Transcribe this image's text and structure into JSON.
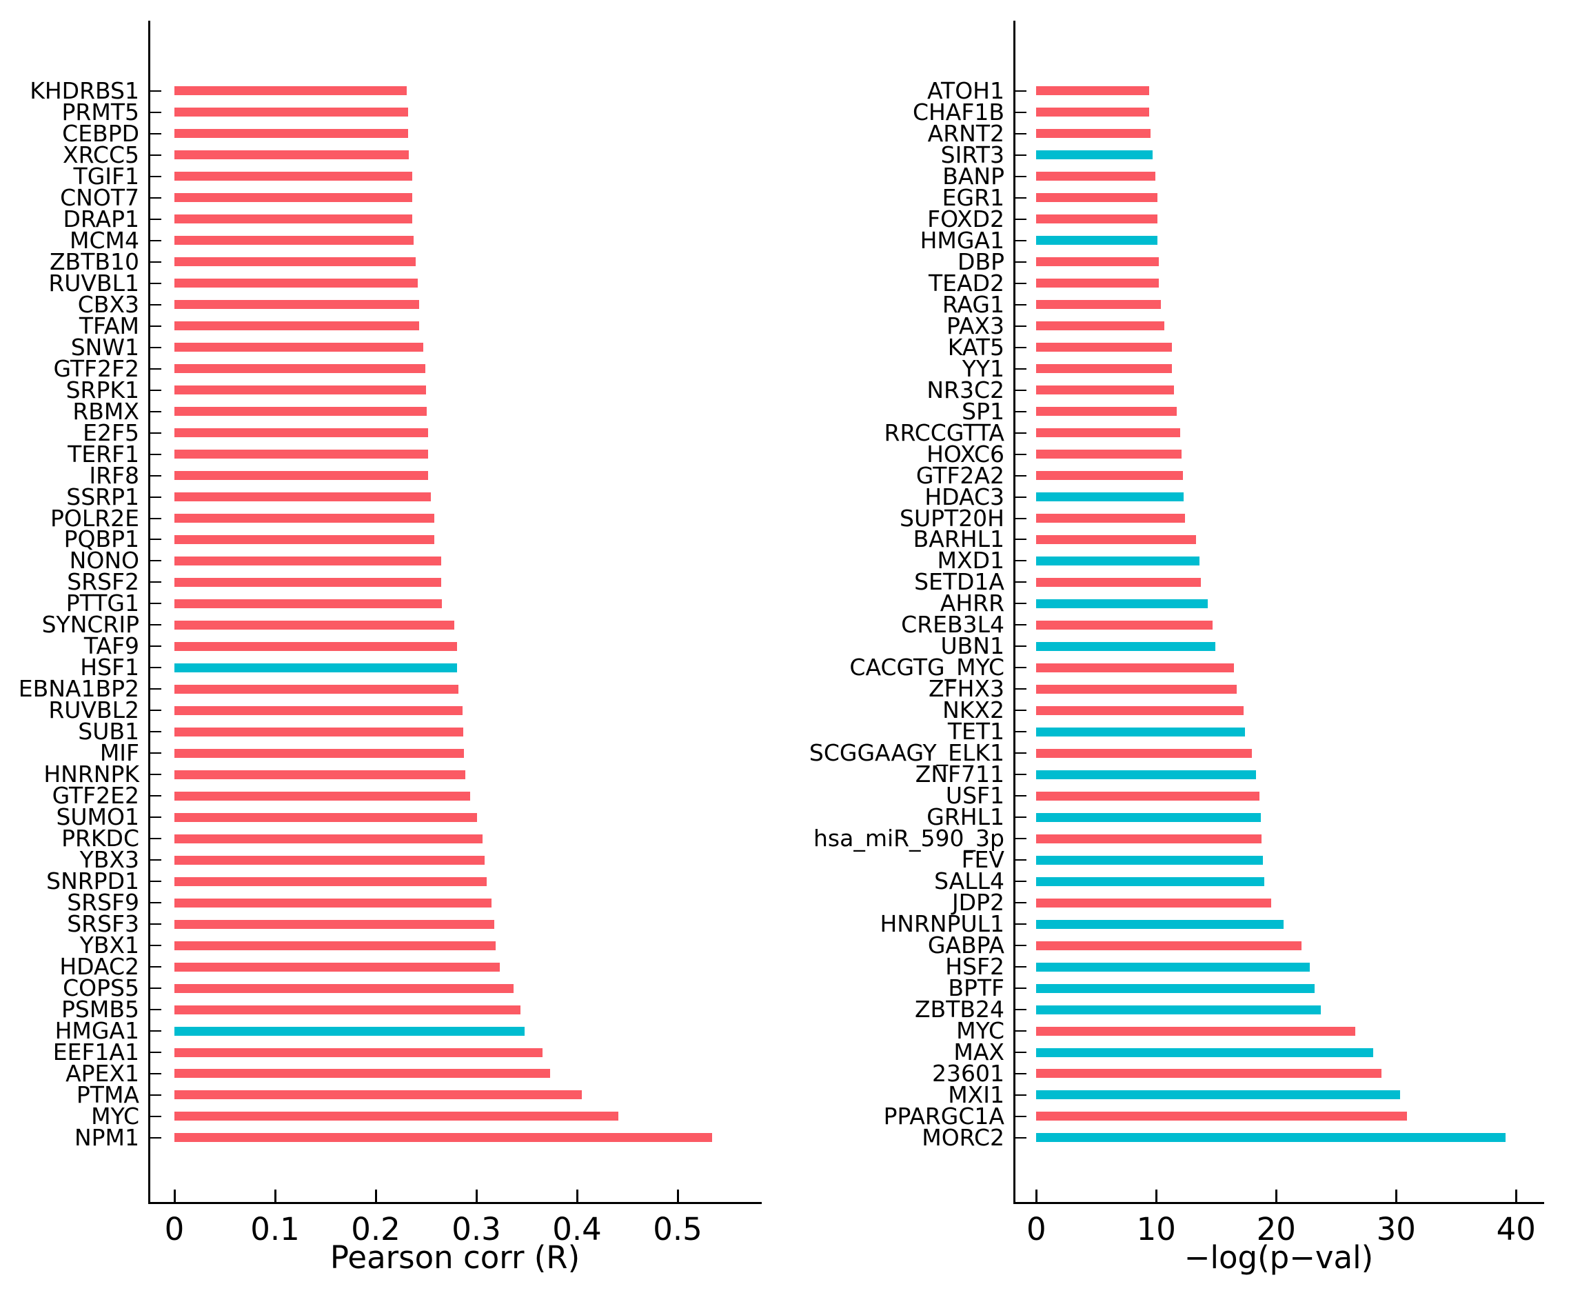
{
  "colors": {
    "red": "#FB5A64",
    "cyan": "#00BCD0"
  },
  "chart_data": [
    {
      "type": "bar",
      "orientation": "horizontal",
      "title": "",
      "xlabel": "Pearson corr (R)",
      "ylabel": "",
      "xlim": [
        0,
        0.584
      ],
      "xticks": [
        0,
        0.1,
        0.2,
        0.3,
        0.4,
        0.5
      ],
      "xtick_labels": [
        "0",
        "0.1",
        "0.2",
        "0.3",
        "0.4",
        "0.5"
      ],
      "grid": false,
      "legend": "none",
      "categories": [
        "KHDRBS1",
        "PRMT5",
        "CEBPD",
        "XRCC5",
        "TGIF1",
        "CNOT7",
        "DRAP1",
        "MCM4",
        "ZBTB10",
        "RUVBL1",
        "CBX3",
        "TFAM",
        "SNW1",
        "GTF2F2",
        "SRPK1",
        "RBMX",
        "E2F5",
        "TERF1",
        "IRF8",
        "SSRP1",
        "POLR2E",
        "PQBP1",
        "NONO",
        "SRSF2",
        "PTTG1",
        "SYNCRIP",
        "TAF9",
        "HSF1",
        "EBNA1BP2",
        "RUVBL2",
        "SUB1",
        "MIF",
        "HNRNPK",
        "GTF2E2",
        "SUMO1",
        "PRKDC",
        "YBX3",
        "SNRPD1",
        "SRSF9",
        "SRSF3",
        "YBX1",
        "HDAC2",
        "COPS5",
        "PSMB5",
        "HMGA1",
        "EEF1A1",
        "APEX1",
        "PTMA",
        "MYC",
        "NPM1"
      ],
      "values": [
        0.231,
        0.232,
        0.232,
        0.233,
        0.236,
        0.236,
        0.236,
        0.238,
        0.24,
        0.242,
        0.243,
        0.243,
        0.247,
        0.249,
        0.25,
        0.251,
        0.252,
        0.252,
        0.252,
        0.255,
        0.258,
        0.258,
        0.265,
        0.265,
        0.266,
        0.278,
        0.281,
        0.281,
        0.282,
        0.286,
        0.287,
        0.288,
        0.289,
        0.294,
        0.301,
        0.306,
        0.308,
        0.31,
        0.315,
        0.318,
        0.319,
        0.323,
        0.337,
        0.344,
        0.348,
        0.366,
        0.373,
        0.405,
        0.441,
        0.534
      ],
      "bar_colors": [
        "red",
        "red",
        "red",
        "red",
        "red",
        "red",
        "red",
        "red",
        "red",
        "red",
        "red",
        "red",
        "red",
        "red",
        "red",
        "red",
        "red",
        "red",
        "red",
        "red",
        "red",
        "red",
        "red",
        "red",
        "red",
        "red",
        "red",
        "cyan",
        "red",
        "red",
        "red",
        "red",
        "red",
        "red",
        "red",
        "red",
        "red",
        "red",
        "red",
        "red",
        "red",
        "red",
        "red",
        "red",
        "cyan",
        "red",
        "red",
        "red",
        "red",
        "red"
      ]
    },
    {
      "type": "bar",
      "orientation": "horizontal",
      "title": "",
      "xlabel": "−log(p−val)",
      "ylabel": "",
      "xlim": [
        0,
        42.3
      ],
      "xticks": [
        0,
        10,
        20,
        30,
        40
      ],
      "xtick_labels": [
        "0",
        "10",
        "20",
        "30",
        "40"
      ],
      "grid": false,
      "legend": "none",
      "categories": [
        "ATOH1",
        "CHAF1B",
        "ARNT2",
        "SIRT3",
        "BANP",
        "EGR1",
        "FOXD2",
        "HMGA1",
        "DBP",
        "TEAD2",
        "RAG1",
        "PAX3",
        "KAT5",
        "YY1",
        "NR3C2",
        "SP1",
        "RRCCGTTA",
        "HOXC6",
        "GTF2A2",
        "HDAC3",
        "SUPT20H",
        "BARHL1",
        "MXD1",
        "SETD1A",
        "AHRR",
        "CREB3L4",
        "UBN1",
        "CACGTG_MYC",
        "ZFHX3",
        "NKX2",
        "TET1",
        "SCGGAAGY_ELK1",
        "ZNF711",
        "USF1",
        "GRHL1",
        "hsa_miR_590_3p",
        "FEV",
        "SALL4",
        "JDP2",
        "HNRNPUL1",
        "GABPA",
        "HSF2",
        "BPTF",
        "ZBTB24",
        "MYC",
        "MAX",
        "23601",
        "MXI1",
        "PPARGC1A",
        "MORC2"
      ],
      "values": [
        9.4,
        9.4,
        9.5,
        9.7,
        9.9,
        10.1,
        10.1,
        10.1,
        10.2,
        10.2,
        10.4,
        10.7,
        11.3,
        11.3,
        11.5,
        11.7,
        12.0,
        12.1,
        12.2,
        12.3,
        12.4,
        13.3,
        13.6,
        13.7,
        14.3,
        14.7,
        14.9,
        16.5,
        16.7,
        17.3,
        17.4,
        18.0,
        18.3,
        18.6,
        18.7,
        18.8,
        18.9,
        19.0,
        19.6,
        20.6,
        22.1,
        22.8,
        23.2,
        23.7,
        26.6,
        28.1,
        28.8,
        30.3,
        30.9,
        39.1
      ],
      "bar_colors": [
        "red",
        "red",
        "red",
        "cyan",
        "red",
        "red",
        "red",
        "cyan",
        "red",
        "red",
        "red",
        "red",
        "red",
        "red",
        "red",
        "red",
        "red",
        "red",
        "red",
        "cyan",
        "red",
        "red",
        "cyan",
        "red",
        "cyan",
        "red",
        "cyan",
        "red",
        "red",
        "red",
        "cyan",
        "red",
        "cyan",
        "red",
        "cyan",
        "red",
        "cyan",
        "cyan",
        "red",
        "cyan",
        "red",
        "cyan",
        "cyan",
        "cyan",
        "red",
        "cyan",
        "red",
        "cyan",
        "red",
        "cyan"
      ]
    }
  ]
}
